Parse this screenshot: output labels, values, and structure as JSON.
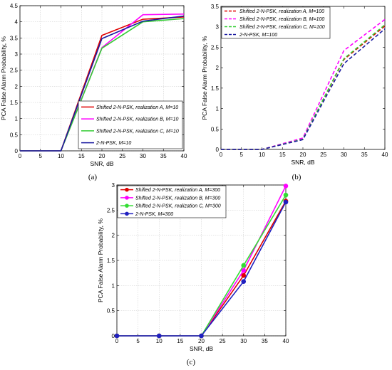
{
  "chart_data": [
    {
      "type": "line",
      "caption": "(a)",
      "xlabel": "SNR, dB",
      "ylabel": "PCA False Alarm Probability, %",
      "xlim": [
        0,
        40
      ],
      "ylim": [
        0,
        4.5
      ],
      "xticks": [
        0,
        5,
        10,
        15,
        20,
        25,
        30,
        35,
        40
      ],
      "yticks": [
        0,
        0.5,
        1,
        1.5,
        2,
        2.5,
        3,
        3.5,
        4,
        4.5
      ],
      "grid": true,
      "legend_position": "bottom-right",
      "x": [
        0,
        10,
        20,
        30,
        40
      ],
      "series": [
        {
          "name": "Shifted 2-N-PSK, realization A, M=10",
          "color": "#e00000",
          "dash": "solid",
          "marker": "none",
          "values": [
            0,
            0,
            3.58,
            4.08,
            4.15
          ]
        },
        {
          "name": "Shifted 2-N-PSK, realization B, M=10",
          "color": "#ff00ff",
          "dash": "solid",
          "marker": "none",
          "values": [
            0,
            0,
            3.2,
            4.22,
            4.24
          ]
        },
        {
          "name": "Shifted 2-N-PSK, realization C, M=10",
          "color": "#33cc33",
          "dash": "solid",
          "marker": "none",
          "values": [
            0,
            0,
            3.18,
            4.0,
            4.1
          ]
        },
        {
          "name": "2-N-PSK, M=10",
          "color": "#1a1aa0",
          "dash": "solid",
          "marker": "none",
          "values": [
            0,
            0,
            3.48,
            4.02,
            4.18
          ]
        }
      ]
    },
    {
      "type": "line",
      "caption": "(b)",
      "xlabel": "SNR, dB",
      "ylabel": "PCA False Alarm Probability, %",
      "xlim": [
        0,
        40
      ],
      "ylim": [
        0,
        3.5
      ],
      "xticks": [
        0,
        5,
        10,
        15,
        20,
        25,
        30,
        35,
        40
      ],
      "yticks": [
        0,
        0.5,
        1,
        1.5,
        2,
        2.5,
        3,
        3.5
      ],
      "grid": false,
      "legend_position": "top-left",
      "x": [
        0,
        10,
        20,
        30,
        40
      ],
      "series": [
        {
          "name": "Shifted 2-N-PSK, realization A, M=100",
          "color": "#e00000",
          "dash": "dashed",
          "marker": "none",
          "values": [
            0,
            0,
            0.25,
            2.2,
            3.02
          ]
        },
        {
          "name": "Shifted 2-N-PSK, realization B, M=100",
          "color": "#ff00ff",
          "dash": "dashed",
          "marker": "none",
          "values": [
            0,
            0,
            0.28,
            2.42,
            3.18
          ]
        },
        {
          "name": "Shifted 2-N-PSK, realization C, M=100",
          "color": "#33cc33",
          "dash": "dashed",
          "marker": "none",
          "values": [
            0,
            0,
            0.25,
            2.22,
            3.05
          ]
        },
        {
          "name": "2-N-PSK, M=100",
          "color": "#1a1aa0",
          "dash": "dashed",
          "marker": "none",
          "values": [
            0,
            0,
            0.24,
            2.1,
            2.95
          ]
        }
      ]
    },
    {
      "type": "line",
      "caption": "(c)",
      "xlabel": "SNR, dB",
      "ylabel": "PCA False Alarm Probability, %",
      "xlim": [
        0,
        40
      ],
      "ylim": [
        0,
        3
      ],
      "xticks": [
        0,
        5,
        10,
        15,
        20,
        25,
        30,
        35,
        40
      ],
      "yticks": [
        0,
        0.5,
        1,
        1.5,
        2,
        2.5,
        3
      ],
      "grid": true,
      "legend_position": "top-left",
      "x": [
        0,
        10,
        20,
        30,
        40
      ],
      "series": [
        {
          "name": "Shifted 2-N-PSK, realization A, M=300",
          "color": "#e00000",
          "dash": "solid",
          "marker": "circle",
          "values": [
            0,
            0,
            0,
            1.2,
            2.68
          ]
        },
        {
          "name": "Shifted 2-N-PSK, realization B, M=300",
          "color": "#ff00ff",
          "dash": "solid",
          "marker": "circle",
          "values": [
            0,
            0,
            0,
            1.3,
            2.98
          ]
        },
        {
          "name": "Shifted 2-N-PSK, realization C, M=300",
          "color": "#33dd33",
          "dash": "solid",
          "marker": "circle",
          "values": [
            0,
            0,
            0,
            1.4,
            2.8
          ]
        },
        {
          "name": "2-N-PSK, M=300",
          "color": "#2020c0",
          "dash": "solid",
          "marker": "circle",
          "values": [
            0,
            0,
            0,
            1.08,
            2.66
          ]
        }
      ]
    }
  ]
}
